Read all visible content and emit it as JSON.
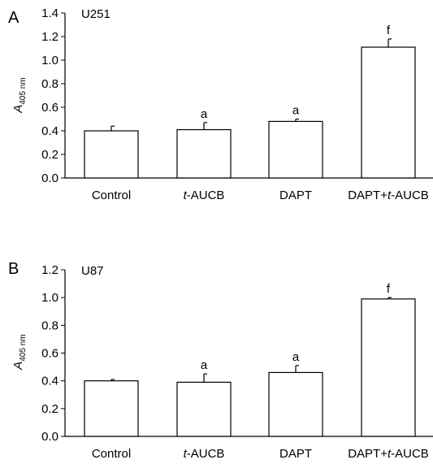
{
  "chart_data": [
    {
      "panel": "A",
      "type": "bar",
      "label": "U251",
      "ylabel_main": "A",
      "ylabel_sub": "405 nm",
      "ylim": [
        0,
        1.4
      ],
      "yticks": [
        "0.0",
        "0.2",
        "0.4",
        "0.6",
        "0.8",
        "1.0",
        "1.2",
        "1.4"
      ],
      "categories": [
        {
          "prefix": "",
          "italic": "",
          "suffix": "Control"
        },
        {
          "prefix": "",
          "italic": "t",
          "suffix": "-AUCB"
        },
        {
          "prefix": "",
          "italic": "",
          "suffix": "DAPT"
        },
        {
          "prefix": "DAPT+",
          "italic": "t",
          "suffix": "-AUCB"
        }
      ],
      "values": [
        0.4,
        0.41,
        0.48,
        1.11
      ],
      "errors": [
        0.04,
        0.06,
        0.02,
        0.07
      ],
      "annotations": [
        "",
        "a",
        "a",
        "f"
      ]
    },
    {
      "panel": "B",
      "type": "bar",
      "label": "U87",
      "ylabel_main": "A",
      "ylabel_sub": "405 nm",
      "ylim": [
        0,
        1.2
      ],
      "yticks": [
        "0.0",
        "0.2",
        "0.4",
        "0.6",
        "0.8",
        "1.0",
        "1.2"
      ],
      "categories": [
        {
          "prefix": "",
          "italic": "",
          "suffix": "Control"
        },
        {
          "prefix": "",
          "italic": "t",
          "suffix": "-AUCB"
        },
        {
          "prefix": "",
          "italic": "",
          "suffix": "DAPT"
        },
        {
          "prefix": "DAPT+",
          "italic": "t",
          "suffix": "-AUCB"
        }
      ],
      "values": [
        0.4,
        0.39,
        0.46,
        0.99
      ],
      "errors": [
        0.01,
        0.06,
        0.05,
        0.01
      ],
      "annotations": [
        "",
        "a",
        "a",
        "f"
      ]
    }
  ]
}
